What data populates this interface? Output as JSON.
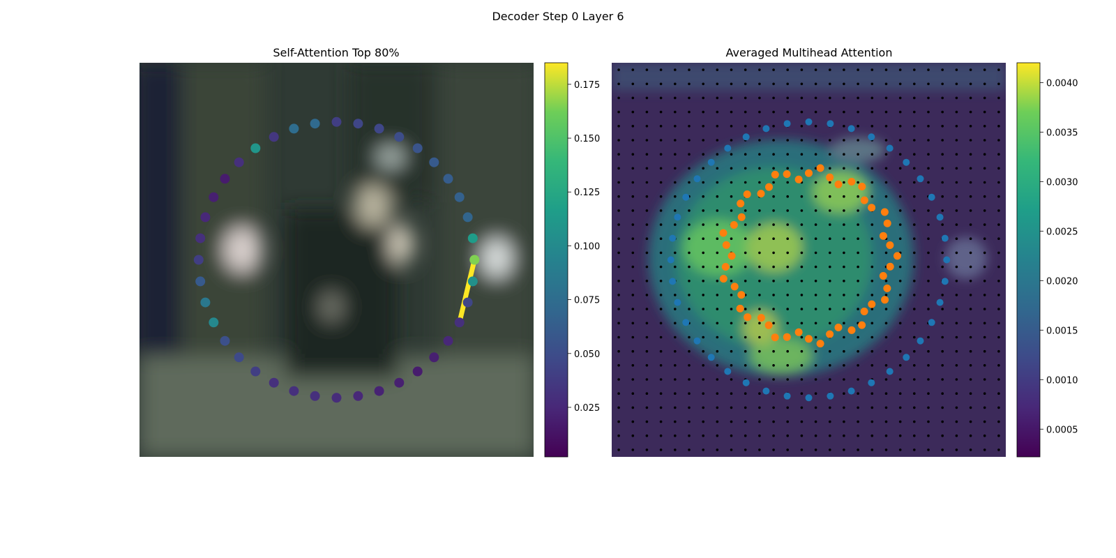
{
  "figure": {
    "title": "Decoder Step 0 Layer 6"
  },
  "chart_data": [
    {
      "type": "scatter",
      "title": "Self-Attention Top 80%",
      "description_free": true,
      "xlabel": "",
      "ylabel": "",
      "colorbar": {
        "colormap": "viridis",
        "range": [
          0.002,
          0.185
        ],
        "ticks": [
          0.025,
          0.05,
          0.075,
          0.1,
          0.125,
          0.15,
          0.175
        ],
        "tick_labels": [
          "0.025",
          "0.050",
          "0.075",
          "0.100",
          "0.125",
          "0.150",
          "0.175"
        ]
      },
      "contour_points": {
        "count": 40,
        "center": [
          0.5,
          0.5
        ],
        "radius": [
          0.35,
          0.35
        ],
        "values": [
          0.04,
          0.045,
          0.046,
          0.05,
          0.055,
          0.06,
          0.062,
          0.065,
          0.068,
          0.115,
          0.165,
          0.105,
          0.045,
          0.03,
          0.025,
          0.02,
          0.018,
          0.02,
          0.022,
          0.025,
          0.028,
          0.03,
          0.03,
          0.03,
          0.04,
          0.048,
          0.052,
          0.098,
          0.085,
          0.06,
          0.04,
          0.03,
          0.025,
          0.02,
          0.018,
          0.03,
          0.11,
          0.035,
          0.075,
          0.072
        ]
      },
      "highlight": {
        "from_index": 10,
        "to_index": 13,
        "color": "#fde725"
      },
      "grid": false,
      "axes_visible": false
    },
    {
      "type": "heatmap",
      "title": "Averaged Multihead Attention",
      "xlabel": "",
      "ylabel": "",
      "grid_size": [
        28,
        28
      ],
      "colorbar": {
        "colormap": "viridis",
        "range": [
          0.00022,
          0.0042
        ],
        "ticks": [
          0.0005,
          0.001,
          0.0015,
          0.002,
          0.0025,
          0.003,
          0.0035,
          0.004
        ],
        "tick_labels": [
          "0.0005",
          "0.0010",
          "0.0015",
          "0.0020",
          "0.0025",
          "0.0030",
          "0.0035",
          "0.0040"
        ]
      },
      "series": [
        {
          "color": "#1f77b4",
          "count": 40,
          "shape": "ring",
          "center": [
            0.5,
            0.5
          ],
          "radius": [
            0.35,
            0.35
          ]
        },
        {
          "color": "#ff7f0e",
          "count": 48,
          "shape": "ring",
          "center": [
            0.5,
            0.49
          ],
          "radius": [
            0.21,
            0.21
          ]
        },
        {
          "color": "#000000",
          "shape": "grid-dots"
        }
      ],
      "grid": false,
      "axes_visible": false
    }
  ]
}
